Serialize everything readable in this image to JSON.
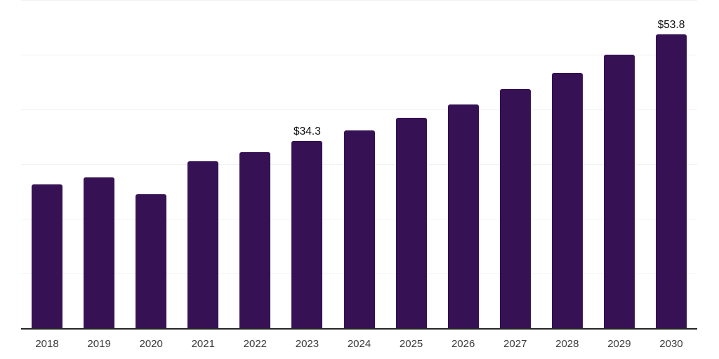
{
  "chart_data": {
    "type": "bar",
    "categories": [
      "2018",
      "2019",
      "2020",
      "2021",
      "2022",
      "2023",
      "2024",
      "2025",
      "2026",
      "2027",
      "2028",
      "2029",
      "2030"
    ],
    "values": [
      26.4,
      27.7,
      24.6,
      30.6,
      32.3,
      34.3,
      36.3,
      38.6,
      41.0,
      43.8,
      46.8,
      50.1,
      53.8
    ],
    "data_labels": [
      "",
      "",
      "",
      "",
      "",
      "$34.3",
      "",
      "",
      "",
      "",
      "",
      "",
      "$53.8"
    ],
    "xlabel": "",
    "ylabel": "",
    "ylim": [
      0,
      60
    ],
    "gridline_interval": 10,
    "grid": true,
    "legend": "none",
    "y_axis_tick_labels_visible": false,
    "colors": {
      "bar": "#361154",
      "gridline": "#f2f2f2",
      "axis_line": "#262626",
      "tick_label": "#3a3a3a",
      "data_label": "#0d0d0d",
      "background": "#ffffff"
    }
  }
}
